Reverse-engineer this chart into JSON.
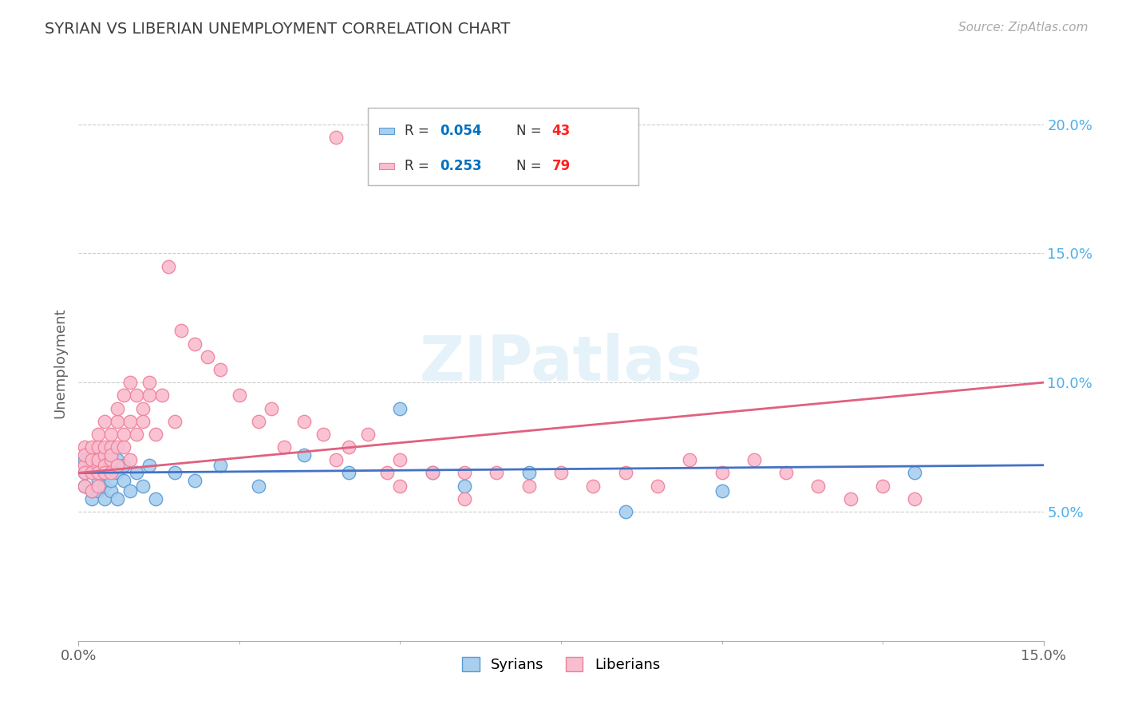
{
  "title": "SYRIAN VS LIBERIAN UNEMPLOYMENT CORRELATION CHART",
  "source_text": "Source: ZipAtlas.com",
  "ylabel": "Unemployment",
  "watermark": "ZIPatlas",
  "xmin": 0.0,
  "xmax": 0.15,
  "ymin": 0.0,
  "ymax": 0.215,
  "yticks": [
    0.05,
    0.1,
    0.15,
    0.2
  ],
  "ytick_labels": [
    "5.0%",
    "10.0%",
    "15.0%",
    "20.0%"
  ],
  "xtick_start_label": "0.0%",
  "xtick_end_label": "15.0%",
  "syrian_color": "#A8CFEE",
  "liberian_color": "#F9BDD0",
  "syrian_edge_color": "#5B9BD5",
  "liberian_edge_color": "#F08098",
  "trend_syrian_color": "#4472C4",
  "trend_liberian_color": "#E06080",
  "syrian_R": 0.054,
  "syrian_N": 43,
  "liberian_R": 0.253,
  "liberian_N": 79,
  "background_color": "#FFFFFF",
  "grid_color": "#CCCCCC",
  "title_color": "#404040",
  "axis_label_color": "#606060",
  "ytick_color": "#4DAFEA",
  "legend_r_color": "#0070C0",
  "legend_n_color": "#FF2020",
  "syrian_x": [
    0.001,
    0.001,
    0.001,
    0.002,
    0.002,
    0.002,
    0.002,
    0.003,
    0.003,
    0.003,
    0.003,
    0.003,
    0.004,
    0.004,
    0.004,
    0.004,
    0.005,
    0.005,
    0.005,
    0.005,
    0.006,
    0.006,
    0.006,
    0.007,
    0.007,
    0.008,
    0.009,
    0.01,
    0.011,
    0.012,
    0.015,
    0.018,
    0.022,
    0.028,
    0.035,
    0.042,
    0.05,
    0.055,
    0.06,
    0.07,
    0.085,
    0.1,
    0.13
  ],
  "syrian_y": [
    0.065,
    0.07,
    0.06,
    0.068,
    0.055,
    0.072,
    0.058,
    0.065,
    0.07,
    0.058,
    0.062,
    0.068,
    0.055,
    0.072,
    0.06,
    0.065,
    0.068,
    0.058,
    0.072,
    0.062,
    0.065,
    0.055,
    0.07,
    0.062,
    0.068,
    0.058,
    0.065,
    0.06,
    0.068,
    0.055,
    0.065,
    0.062,
    0.068,
    0.06,
    0.072,
    0.065,
    0.09,
    0.065,
    0.06,
    0.065,
    0.05,
    0.058,
    0.065
  ],
  "liberian_x": [
    0.001,
    0.001,
    0.001,
    0.001,
    0.001,
    0.002,
    0.002,
    0.002,
    0.002,
    0.003,
    0.003,
    0.003,
    0.003,
    0.003,
    0.003,
    0.004,
    0.004,
    0.004,
    0.004,
    0.004,
    0.005,
    0.005,
    0.005,
    0.005,
    0.005,
    0.006,
    0.006,
    0.006,
    0.006,
    0.007,
    0.007,
    0.007,
    0.008,
    0.008,
    0.008,
    0.009,
    0.009,
    0.01,
    0.01,
    0.011,
    0.011,
    0.012,
    0.013,
    0.014,
    0.015,
    0.016,
    0.018,
    0.02,
    0.022,
    0.025,
    0.028,
    0.03,
    0.032,
    0.035,
    0.038,
    0.04,
    0.042,
    0.045,
    0.048,
    0.05,
    0.055,
    0.06,
    0.065,
    0.07,
    0.075,
    0.08,
    0.085,
    0.09,
    0.095,
    0.1,
    0.105,
    0.11,
    0.115,
    0.12,
    0.125,
    0.13,
    0.04,
    0.05,
    0.06
  ],
  "liberian_y": [
    0.068,
    0.075,
    0.06,
    0.072,
    0.065,
    0.058,
    0.07,
    0.075,
    0.065,
    0.068,
    0.075,
    0.06,
    0.07,
    0.08,
    0.065,
    0.072,
    0.085,
    0.068,
    0.075,
    0.065,
    0.07,
    0.075,
    0.08,
    0.065,
    0.072,
    0.075,
    0.085,
    0.068,
    0.09,
    0.075,
    0.08,
    0.095,
    0.085,
    0.07,
    0.1,
    0.095,
    0.08,
    0.09,
    0.085,
    0.095,
    0.1,
    0.08,
    0.095,
    0.145,
    0.085,
    0.12,
    0.115,
    0.11,
    0.105,
    0.095,
    0.085,
    0.09,
    0.075,
    0.085,
    0.08,
    0.07,
    0.075,
    0.08,
    0.065,
    0.06,
    0.065,
    0.055,
    0.065,
    0.06,
    0.065,
    0.06,
    0.065,
    0.06,
    0.07,
    0.065,
    0.07,
    0.065,
    0.06,
    0.055,
    0.06,
    0.055,
    0.195,
    0.07,
    0.065
  ],
  "trend_syrian_start_y": 0.065,
  "trend_syrian_end_y": 0.068,
  "trend_liberian_start_y": 0.065,
  "trend_liberian_end_y": 0.1
}
